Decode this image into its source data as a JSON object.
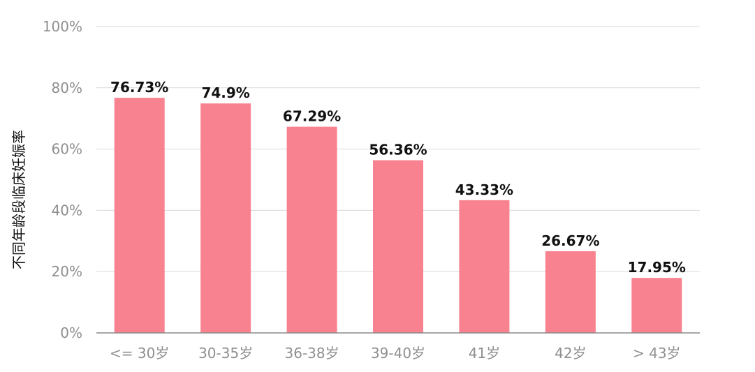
{
  "chart_data": {
    "type": "bar",
    "ylabel": "不同年龄段临床妊娠率",
    "categories": [
      "<= 30岁",
      "30-35岁",
      "36-38岁",
      "39-40岁",
      "41岁",
      "42岁",
      "> 43岁"
    ],
    "values": [
      76.73,
      74.9,
      67.29,
      56.36,
      43.33,
      26.67,
      17.95
    ],
    "value_labels": [
      "76.73%",
      "74.9%",
      "67.29%",
      "56.36%",
      "43.33%",
      "26.67%",
      "17.95%"
    ],
    "yticks": [
      {
        "value": 0,
        "label": "0%"
      },
      {
        "value": 20,
        "label": "20%"
      },
      {
        "value": 40,
        "label": "40%"
      },
      {
        "value": 60,
        "label": "60%"
      },
      {
        "value": 80,
        "label": "80%"
      },
      {
        "value": 100,
        "label": "100%"
      }
    ],
    "ylim": [
      0,
      100
    ],
    "grid": true,
    "bar_color": "#f8828f",
    "grid_color": "#d9d9d9",
    "axis_color": "#8a8a8a"
  }
}
